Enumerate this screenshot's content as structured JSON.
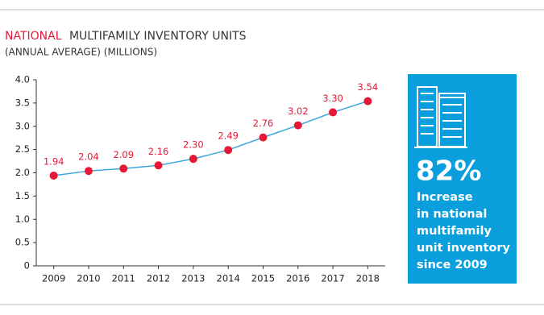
{
  "chart_data": {
    "type": "line",
    "title_highlight": "NATIONAL",
    "title": "MULTIFAMILY INVENTORY UNITS",
    "subtitle": "(ANNUAL AVERAGE) (MILLIONS)",
    "categories": [
      "2009",
      "2010",
      "2011",
      "2012",
      "2013",
      "2014",
      "2015",
      "2016",
      "2017",
      "2018"
    ],
    "values": [
      1.94,
      2.04,
      2.09,
      2.16,
      2.3,
      2.49,
      2.76,
      3.02,
      3.3,
      3.54
    ],
    "value_labels": [
      "1.94",
      "2.04",
      "2.09",
      "2.16",
      "2.30",
      "2.49",
      "2.76",
      "3.02",
      "3.30",
      "3.54"
    ],
    "line_color": "#3ba7dc",
    "marker_color": "#e31937",
    "ylim": [
      0,
      4
    ],
    "yticks": [
      0,
      0.5,
      {
        "value": 1,
        "label": "1.0"
      },
      1.5,
      {
        "value": 2,
        "label": "2.0"
      },
      2.5,
      {
        "value": 3,
        "label": "3.0"
      },
      3.5,
      {
        "value": 4,
        "label": "4.0"
      }
    ],
    "callout": {
      "value": "82%",
      "lines": [
        "Increase",
        "in national",
        "multifamily",
        "unit inventory",
        "since 2009"
      ]
    }
  }
}
